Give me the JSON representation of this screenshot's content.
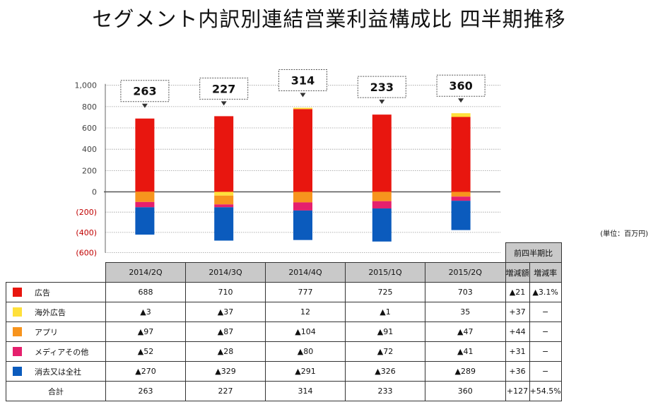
{
  "title": "セグメント内訳別連結営業利益構成比 四半期推移",
  "unit_note": "(単位：百万円)",
  "comparison_header": "前四半期比",
  "comparison_cols": [
    "増減額",
    "増減率"
  ],
  "colors": {
    "広告": "#e8160f",
    "海外広告": "#ffe03b",
    "アプリ": "#f7941d",
    "メディアその他": "#e5206d",
    "消去又は全社": "#0b5bbd"
  },
  "chart_data": {
    "type": "bar",
    "stacked": true,
    "categories": [
      "2014/2Q",
      "2014/3Q",
      "2014/4Q",
      "2015/1Q",
      "2015/2Q"
    ],
    "series": [
      {
        "name": "広告",
        "values": [
          688,
          710,
          777,
          725,
          703
        ]
      },
      {
        "name": "海外広告",
        "values": [
          -3,
          -37,
          12,
          -1,
          35
        ]
      },
      {
        "name": "アプリ",
        "values": [
          -97,
          -87,
          -104,
          -91,
          -47
        ]
      },
      {
        "name": "メディアその他",
        "values": [
          -52,
          -28,
          -80,
          -72,
          -41
        ]
      },
      {
        "name": "消去又は全社",
        "values": [
          -270,
          -329,
          -291,
          -326,
          -289
        ]
      }
    ],
    "totals": [
      263,
      227,
      314,
      233,
      360
    ],
    "ylim": [
      -600,
      1000
    ],
    "yticks": [
      "1,000",
      "800",
      "600",
      "400",
      "200",
      "0",
      "(200)",
      "(400)",
      "(600)"
    ],
    "ytick_values": [
      1000,
      800,
      600,
      400,
      200,
      0,
      -200,
      -400,
      -600
    ]
  },
  "table": {
    "rows": [
      {
        "label": "広告",
        "cells": [
          "688",
          "710",
          "777",
          "725",
          "703"
        ],
        "diff": "▲21",
        "rate": "▲3.1%"
      },
      {
        "label": "海外広告",
        "cells": [
          "▲3",
          "▲37",
          "12",
          "▲1",
          "35"
        ],
        "diff": "+37",
        "rate": "−"
      },
      {
        "label": "アプリ",
        "cells": [
          "▲97",
          "▲87",
          "▲104",
          "▲91",
          "▲47"
        ],
        "diff": "+44",
        "rate": "−"
      },
      {
        "label": "メディアその他",
        "cells": [
          "▲52",
          "▲28",
          "▲80",
          "▲72",
          "▲41"
        ],
        "diff": "+31",
        "rate": "−"
      },
      {
        "label": "消去又は全社",
        "cells": [
          "▲270",
          "▲329",
          "▲291",
          "▲326",
          "▲289"
        ],
        "diff": "+36",
        "rate": "−"
      }
    ],
    "total": {
      "label": "合計",
      "cells": [
        "263",
        "227",
        "314",
        "233",
        "360"
      ],
      "diff": "+127",
      "rate": "+54.5%"
    }
  }
}
